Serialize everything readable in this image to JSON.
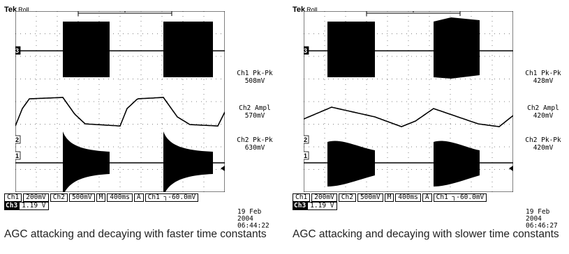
{
  "panels": [
    {
      "tek": "Tek",
      "mode": "Roll",
      "measurements": [
        {
          "label": "Ch1 Pk-Pk",
          "value": "508mV"
        },
        {
          "label": "Ch2 Ampl",
          "value": "570mV"
        },
        {
          "label": "Ch2 Pk-Pk",
          "value": "630mV"
        }
      ],
      "status": {
        "ch1": "Ch1",
        "ch1_scale": "200mV",
        "ch2": "Ch2",
        "ch2_scale": "500mV",
        "m": "M",
        "timebase": "400ms",
        "a": "A",
        "trigger": "Ch1 ┐-60.0mV",
        "ch3": "Ch3",
        "ch3_scale": "1.19 V"
      },
      "date": "19 Feb  2004",
      "time": "06:44:22",
      "caption": "AGC attacking and decaying with faster time constants"
    },
    {
      "tek": "Tek",
      "mode": "Roll",
      "measurements": [
        {
          "label": "Ch1 Pk-Pk",
          "value": "428mV"
        },
        {
          "label": "Ch2 Ampl",
          "value": "420mV"
        },
        {
          "label": "Ch2 Pk-Pk",
          "value": "420mV"
        }
      ],
      "status": {
        "ch1": "Ch1",
        "ch1_scale": "200mV",
        "ch2": "Ch2",
        "ch2_scale": "500mV",
        "m": "M",
        "timebase": "400ms",
        "a": "A",
        "trigger": "Ch1 ┐-60.0mV",
        "ch3": "Ch3",
        "ch3_scale": "1.19 V"
      },
      "date": "19 Feb  2004",
      "time": "06:46:27",
      "caption": "AGC attacking and decaying with slower time constants"
    }
  ],
  "markers": {
    "ch3": "3",
    "ch2": "2",
    "ch1": "1"
  },
  "colors": {
    "trace": "#000000",
    "grid": "#000000",
    "background": "#ffffff"
  }
}
